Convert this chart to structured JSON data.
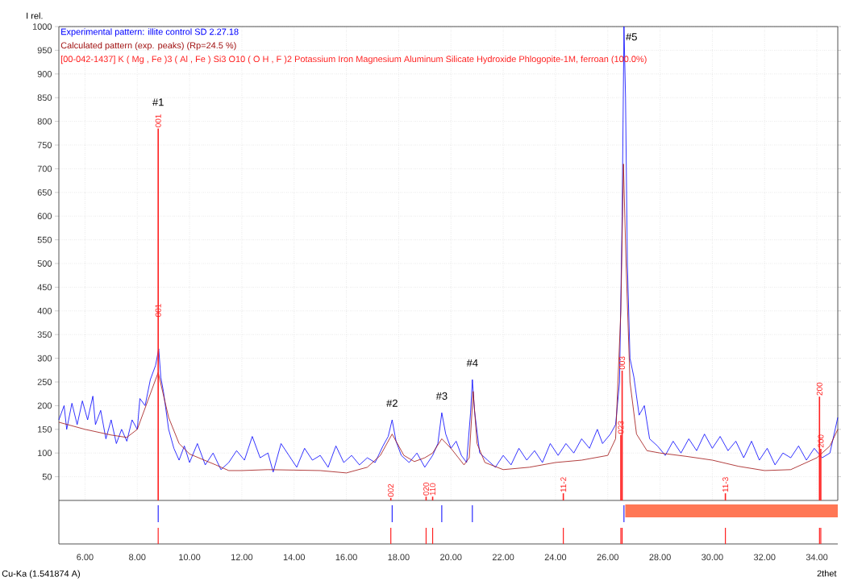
{
  "chart_data": {
    "type": "line",
    "xlim": [
      5,
      34.8
    ],
    "ylim": [
      0,
      1000
    ],
    "xticks": [
      {
        "value": 6,
        "label": "6.00"
      },
      {
        "value": 8,
        "label": "8.00"
      },
      {
        "value": 10,
        "label": "10.00"
      },
      {
        "value": 12,
        "label": "12.00"
      },
      {
        "value": 14,
        "label": "14.00"
      },
      {
        "value": 16,
        "label": "16.00"
      },
      {
        "value": 18,
        "label": "18.00"
      },
      {
        "value": 20,
        "label": "20.00"
      },
      {
        "value": 22,
        "label": "22.00"
      },
      {
        "value": 24,
        "label": "24.00"
      },
      {
        "value": 26,
        "label": "26.00"
      },
      {
        "value": 28,
        "label": "28.00"
      },
      {
        "value": 30,
        "label": "30.00"
      },
      {
        "value": 32,
        "label": "32.00"
      },
      {
        "value": 34,
        "label": "34.00"
      }
    ],
    "yticks": [
      50,
      100,
      150,
      200,
      250,
      300,
      350,
      400,
      450,
      500,
      550,
      600,
      650,
      700,
      750,
      800,
      850,
      900,
      950,
      1000
    ],
    "xlabel": "2thet",
    "ylabel": "I rel.",
    "grid": true,
    "legend": "top left",
    "series": [
      {
        "name": "Experimental pattern: illite control SD 2.27.18",
        "color": "#0000ff",
        "x": [
          5.0,
          5.2,
          5.3,
          5.5,
          5.7,
          5.9,
          6.1,
          6.3,
          6.4,
          6.6,
          6.8,
          7.0,
          7.2,
          7.4,
          7.6,
          7.8,
          8.0,
          8.1,
          8.3,
          8.5,
          8.7,
          8.82,
          8.9,
          9.0,
          9.2,
          9.4,
          9.6,
          9.8,
          10.0,
          10.3,
          10.6,
          10.9,
          11.2,
          11.5,
          11.8,
          12.1,
          12.4,
          12.7,
          13.0,
          13.2,
          13.5,
          13.8,
          14.1,
          14.4,
          14.7,
          15.0,
          15.3,
          15.6,
          15.9,
          16.2,
          16.5,
          16.8,
          17.1,
          17.4,
          17.6,
          17.75,
          17.9,
          18.1,
          18.4,
          18.7,
          19.0,
          19.3,
          19.5,
          19.65,
          19.8,
          20.0,
          20.2,
          20.4,
          20.6,
          20.75,
          20.82,
          20.9,
          21.1,
          21.4,
          21.7,
          22.0,
          22.3,
          22.6,
          22.9,
          23.2,
          23.5,
          23.8,
          24.1,
          24.4,
          24.7,
          25.0,
          25.3,
          25.6,
          25.8,
          26.1,
          26.3,
          26.45,
          26.55,
          26.62,
          26.68,
          26.75,
          26.85,
          27.0,
          27.2,
          27.4,
          27.6,
          27.9,
          28.2,
          28.5,
          28.8,
          29.1,
          29.4,
          29.7,
          30.0,
          30.3,
          30.6,
          30.9,
          31.2,
          31.5,
          31.8,
          32.1,
          32.4,
          32.7,
          33.0,
          33.3,
          33.6,
          33.9,
          34.2,
          34.5,
          34.7,
          34.8
        ],
        "values": [
          170,
          200,
          150,
          205,
          160,
          210,
          170,
          220,
          160,
          190,
          130,
          170,
          120,
          150,
          125,
          170,
          150,
          215,
          200,
          255,
          285,
          320,
          260,
          230,
          150,
          110,
          85,
          115,
          80,
          120,
          75,
          100,
          65,
          80,
          105,
          85,
          135,
          90,
          100,
          60,
          120,
          95,
          70,
          110,
          85,
          95,
          70,
          115,
          80,
          95,
          75,
          90,
          80,
          115,
          135,
          170,
          125,
          95,
          80,
          100,
          70,
          95,
          120,
          185,
          140,
          110,
          125,
          95,
          80,
          185,
          255,
          190,
          100,
          85,
          70,
          95,
          75,
          110,
          85,
          105,
          80,
          120,
          95,
          120,
          100,
          130,
          110,
          150,
          120,
          140,
          160,
          250,
          600,
          1000,
          850,
          500,
          300,
          260,
          180,
          200,
          130,
          115,
          95,
          125,
          100,
          130,
          105,
          140,
          110,
          135,
          105,
          125,
          90,
          125,
          85,
          110,
          75,
          100,
          90,
          115,
          85,
          110,
          90,
          100,
          150,
          175
        ]
      },
      {
        "name": "Calculated pattern (exp. peaks) (Rp=24.5 %)",
        "color": "#a01010",
        "x": [
          5,
          6,
          7,
          7.6,
          8.0,
          8.4,
          8.8,
          9.2,
          9.6,
          10,
          11,
          11.5,
          12,
          13,
          14,
          15,
          16,
          16.8,
          17.3,
          17.75,
          18.2,
          18.6,
          19.0,
          19.3,
          19.65,
          20.0,
          20.5,
          20.7,
          20.85,
          21.0,
          21.3,
          22,
          23,
          24,
          25,
          26,
          26.3,
          26.5,
          26.6,
          26.7,
          26.85,
          27.1,
          27.5,
          28,
          29,
          30,
          31,
          32,
          33,
          34,
          34.5,
          34.8
        ],
        "values": [
          165,
          150,
          138,
          133,
          150,
          210,
          270,
          175,
          120,
          98,
          75,
          63,
          63,
          65,
          64,
          63,
          58,
          70,
          95,
          140,
          95,
          82,
          90,
          100,
          130,
          110,
          75,
          90,
          230,
          120,
          80,
          65,
          70,
          80,
          85,
          95,
          130,
          400,
          710,
          500,
          250,
          140,
          105,
          100,
          93,
          85,
          72,
          63,
          65,
          90,
          115,
          150
        ]
      },
      {
        "name": "[00-042-1437] K ( Mg , Fe )3 ( Al , Fe ) Si3 O10 ( O H , F )2 Potassium Iron Magnesium Aluminum Silicate Hydroxide Phlogopite-1M, ferroan (100.0%)",
        "type": "bar",
        "color": "#ff2020",
        "x": [
          8.8,
          17.7,
          19.05,
          19.3,
          24.3,
          26.5,
          26.55,
          30.5,
          34.1,
          34.15
        ],
        "values": [
          785,
          5,
          8,
          8,
          15,
          138,
          274,
          15,
          219,
          109
        ]
      }
    ],
    "annotations": [
      {
        "text": "#2",
        "x": 17.75,
        "y": 170
      },
      {
        "text": "#3",
        "x": 19.65,
        "y": 185
      },
      {
        "text": "#4",
        "x": 20.82,
        "y": 255
      },
      {
        "text": "#5",
        "x": 26.62,
        "y": 1000
      },
      {
        "text": "001",
        "x": 8.8,
        "y": 785
      },
      {
        "text": "#1",
        "x": 8.8,
        "y": 785
      },
      {
        "text": "001",
        "x": 8.8,
        "y": 385
      },
      {
        "text": "002",
        "x": 17.7,
        "y": 5
      },
      {
        "text": "020",
        "x": 19.05,
        "y": 8
      },
      {
        "text": "110",
        "x": 19.3,
        "y": 8
      },
      {
        "text": "11-2",
        "x": 24.3,
        "y": 15
      },
      {
        "text": "023",
        "x": 26.5,
        "y": 138
      },
      {
        "text": "003",
        "x": 26.55,
        "y": 274
      },
      {
        "text": "11-3",
        "x": 30.5,
        "y": 15
      },
      {
        "text": "200",
        "x": 34.1,
        "y": 219
      },
      {
        "text": "200",
        "x": 34.15,
        "y": 109
      },
      "Cu-Ka (1.541874 A)"
    ]
  }
}
